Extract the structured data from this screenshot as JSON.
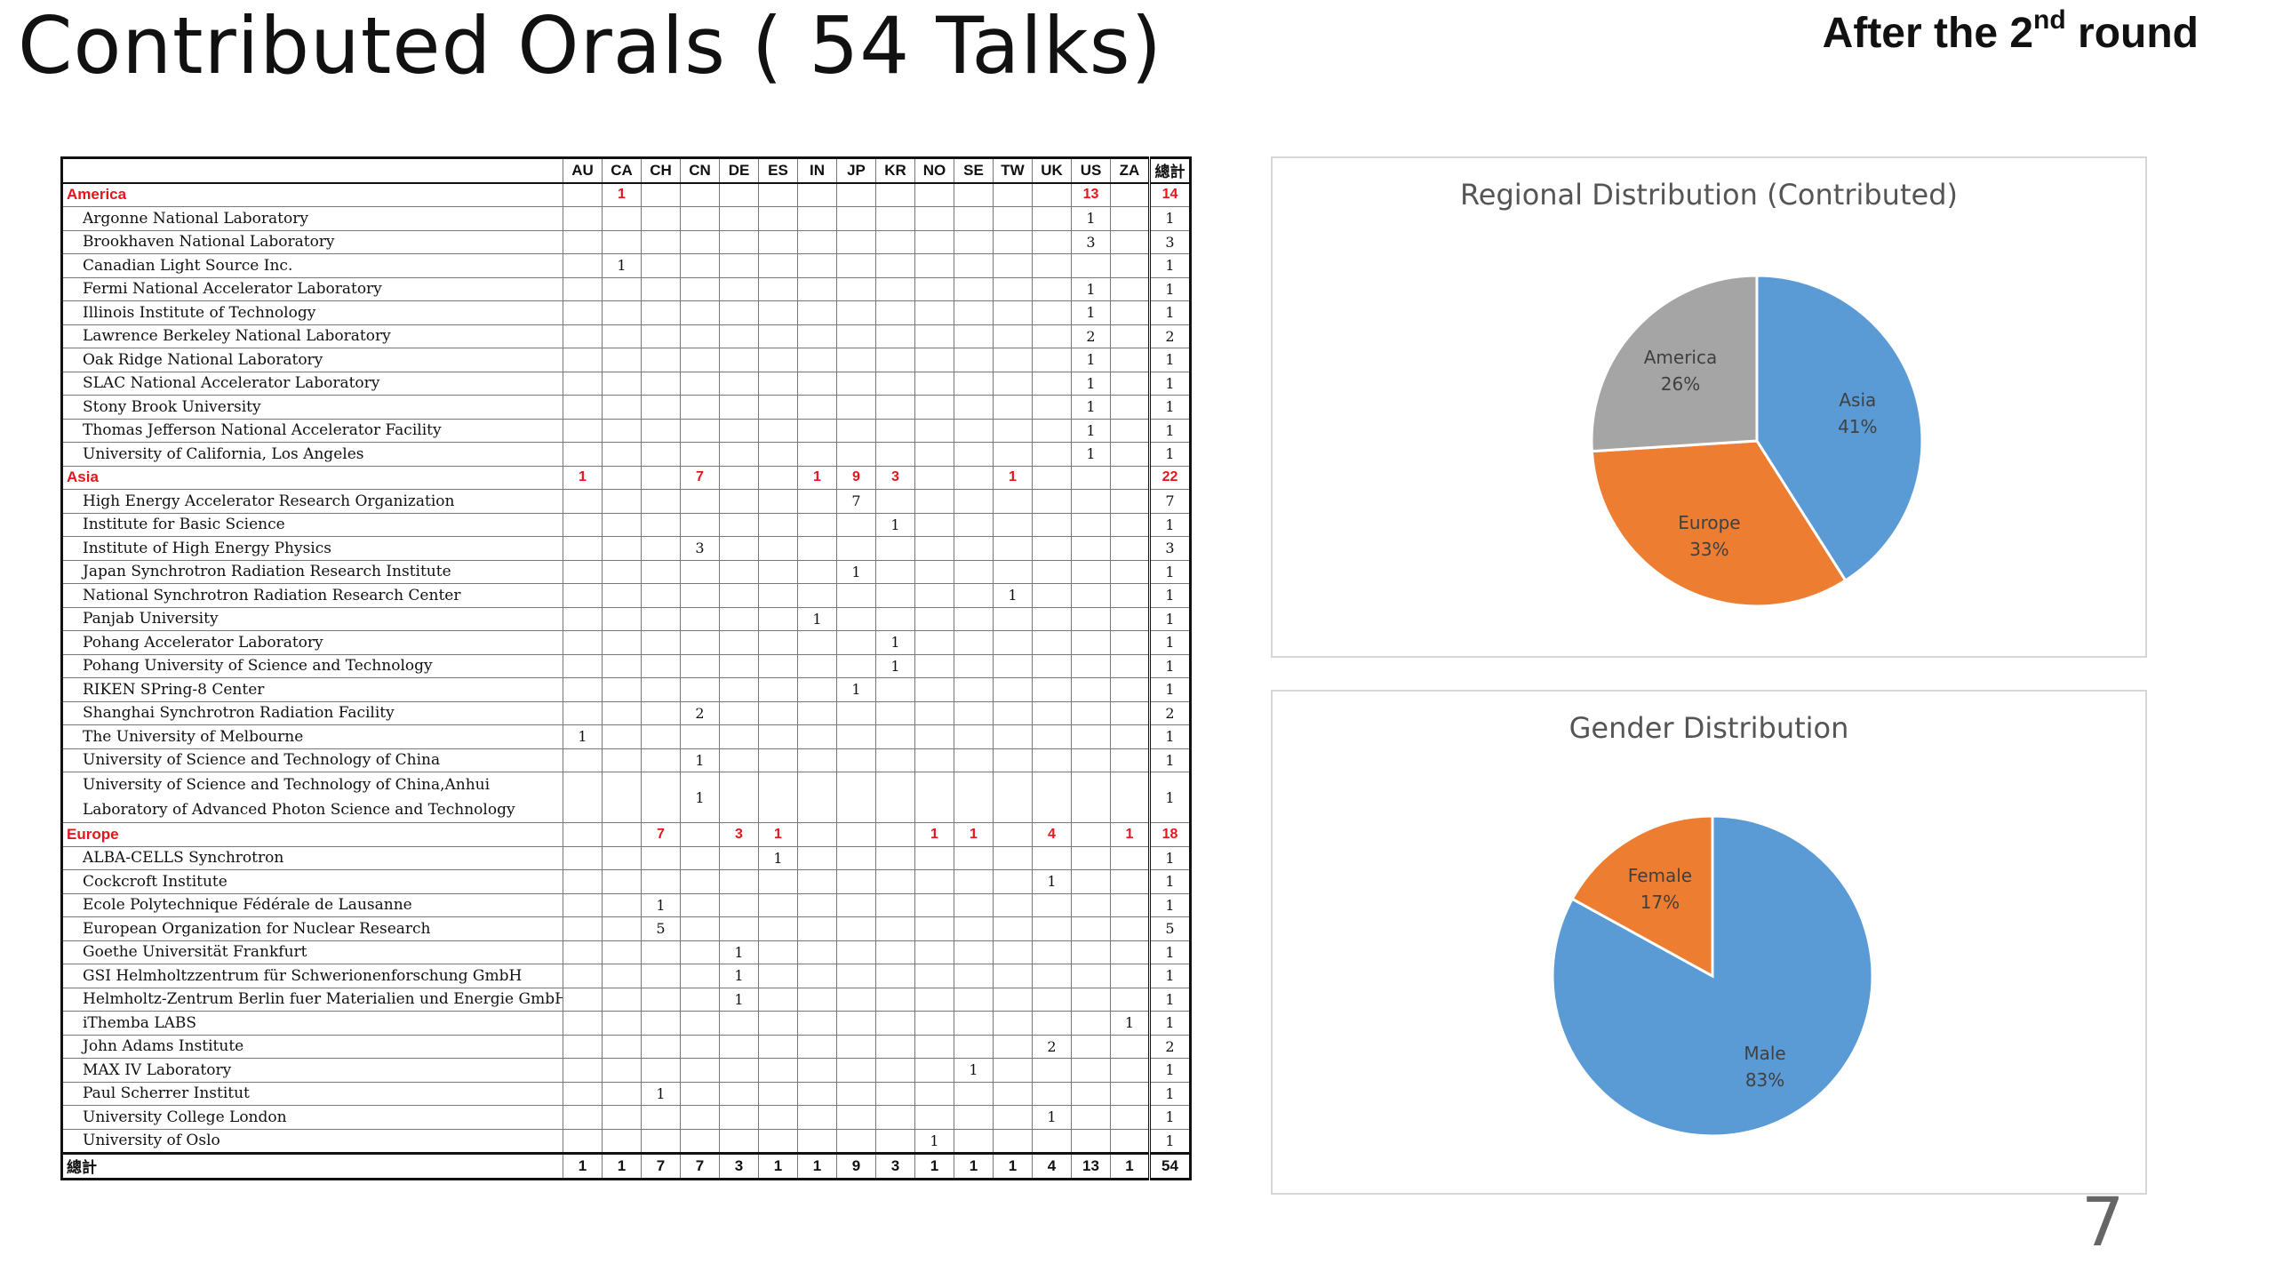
{
  "slide": {
    "title": "Contributed Orals ( 54 Talks)",
    "round_prefix": "After the 2",
    "round_sup": "nd",
    "round_suffix": " round",
    "number": "7"
  },
  "table": {
    "columns": [
      "AU",
      "CA",
      "CH",
      "CN",
      "DE",
      "ES",
      "IN",
      "JP",
      "KR",
      "NO",
      "SE",
      "TW",
      "UK",
      "US",
      "ZA",
      "總計"
    ],
    "rows": [
      {
        "type": "group",
        "name": "America",
        "cells": [
          "",
          "1",
          "",
          "",
          "",
          "",
          "",
          "",
          "",
          "",
          "",
          "",
          "",
          "13",
          "",
          "14"
        ]
      },
      {
        "type": "item",
        "name": "Argonne National Laboratory",
        "cells": [
          "",
          "",
          "",
          "",
          "",
          "",
          "",
          "",
          "",
          "",
          "",
          "",
          "",
          "1",
          "",
          "1"
        ]
      },
      {
        "type": "item",
        "name": "Brookhaven National Laboratory",
        "cells": [
          "",
          "",
          "",
          "",
          "",
          "",
          "",
          "",
          "",
          "",
          "",
          "",
          "",
          "3",
          "",
          "3"
        ]
      },
      {
        "type": "item",
        "name": "Canadian Light Source Inc.",
        "cells": [
          "",
          "1",
          "",
          "",
          "",
          "",
          "",
          "",
          "",
          "",
          "",
          "",
          "",
          "",
          "",
          "1"
        ]
      },
      {
        "type": "item",
        "name": "Fermi National Accelerator Laboratory",
        "cells": [
          "",
          "",
          "",
          "",
          "",
          "",
          "",
          "",
          "",
          "",
          "",
          "",
          "",
          "1",
          "",
          "1"
        ]
      },
      {
        "type": "item",
        "name": "Illinois Institute of Technology",
        "cells": [
          "",
          "",
          "",
          "",
          "",
          "",
          "",
          "",
          "",
          "",
          "",
          "",
          "",
          "1",
          "",
          "1"
        ]
      },
      {
        "type": "item",
        "name": "Lawrence Berkeley National Laboratory",
        "cells": [
          "",
          "",
          "",
          "",
          "",
          "",
          "",
          "",
          "",
          "",
          "",
          "",
          "",
          "2",
          "",
          "2"
        ]
      },
      {
        "type": "item",
        "name": "Oak Ridge National Laboratory",
        "cells": [
          "",
          "",
          "",
          "",
          "",
          "",
          "",
          "",
          "",
          "",
          "",
          "",
          "",
          "1",
          "",
          "1"
        ]
      },
      {
        "type": "item",
        "name": "SLAC National Accelerator Laboratory",
        "cells": [
          "",
          "",
          "",
          "",
          "",
          "",
          "",
          "",
          "",
          "",
          "",
          "",
          "",
          "1",
          "",
          "1"
        ]
      },
      {
        "type": "item",
        "name": "Stony Brook University",
        "cells": [
          "",
          "",
          "",
          "",
          "",
          "",
          "",
          "",
          "",
          "",
          "",
          "",
          "",
          "1",
          "",
          "1"
        ]
      },
      {
        "type": "item",
        "name": "Thomas Jefferson National Accelerator Facility",
        "cells": [
          "",
          "",
          "",
          "",
          "",
          "",
          "",
          "",
          "",
          "",
          "",
          "",
          "",
          "1",
          "",
          "1"
        ]
      },
      {
        "type": "item",
        "name": "University of California, Los Angeles",
        "cells": [
          "",
          "",
          "",
          "",
          "",
          "",
          "",
          "",
          "",
          "",
          "",
          "",
          "",
          "1",
          "",
          "1"
        ]
      },
      {
        "type": "group",
        "name": "Asia",
        "cells": [
          "1",
          "",
          "",
          "7",
          "",
          "",
          "1",
          "9",
          "3",
          "",
          "",
          "1",
          "",
          "",
          "",
          "22"
        ]
      },
      {
        "type": "item",
        "name": "High Energy Accelerator Research Organization",
        "cells": [
          "",
          "",
          "",
          "",
          "",
          "",
          "",
          "7",
          "",
          "",
          "",
          "",
          "",
          "",
          "",
          "7"
        ]
      },
      {
        "type": "item",
        "name": "Institute for Basic Science",
        "cells": [
          "",
          "",
          "",
          "",
          "",
          "",
          "",
          "",
          "1",
          "",
          "",
          "",
          "",
          "",
          "",
          "1"
        ]
      },
      {
        "type": "item",
        "name": "Institute of High Energy Physics",
        "cells": [
          "",
          "",
          "",
          "3",
          "",
          "",
          "",
          "",
          "",
          "",
          "",
          "",
          "",
          "",
          "",
          "3"
        ]
      },
      {
        "type": "item",
        "name": "Japan Synchrotron Radiation Research Institute",
        "cells": [
          "",
          "",
          "",
          "",
          "",
          "",
          "",
          "1",
          "",
          "",
          "",
          "",
          "",
          "",
          "",
          "1"
        ]
      },
      {
        "type": "item",
        "name": "National Synchrotron Radiation Research Center",
        "cells": [
          "",
          "",
          "",
          "",
          "",
          "",
          "",
          "",
          "",
          "",
          "",
          "1",
          "",
          "",
          "",
          "1"
        ]
      },
      {
        "type": "item",
        "name": "Panjab University",
        "cells": [
          "",
          "",
          "",
          "",
          "",
          "",
          "1",
          "",
          "",
          "",
          "",
          "",
          "",
          "",
          "",
          "1"
        ]
      },
      {
        "type": "item",
        "name": "Pohang Accelerator Laboratory",
        "cells": [
          "",
          "",
          "",
          "",
          "",
          "",
          "",
          "",
          "1",
          "",
          "",
          "",
          "",
          "",
          "",
          "1"
        ]
      },
      {
        "type": "item",
        "name": "Pohang University of Science and Technology",
        "cells": [
          "",
          "",
          "",
          "",
          "",
          "",
          "",
          "",
          "1",
          "",
          "",
          "",
          "",
          "",
          "",
          "1"
        ]
      },
      {
        "type": "item",
        "name": "RIKEN SPring-8 Center",
        "cells": [
          "",
          "",
          "",
          "",
          "",
          "",
          "",
          "1",
          "",
          "",
          "",
          "",
          "",
          "",
          "",
          "1"
        ]
      },
      {
        "type": "item",
        "name": "Shanghai Synchrotron Radiation Facility",
        "cells": [
          "",
          "",
          "",
          "2",
          "",
          "",
          "",
          "",
          "",
          "",
          "",
          "",
          "",
          "",
          "",
          "2"
        ]
      },
      {
        "type": "item",
        "name": "The University of Melbourne",
        "cells": [
          "1",
          "",
          "",
          "",
          "",
          "",
          "",
          "",
          "",
          "",
          "",
          "",
          "",
          "",
          "",
          "1"
        ]
      },
      {
        "type": "item",
        "name": "University of Science and Technology of China",
        "cells": [
          "",
          "",
          "",
          "1",
          "",
          "",
          "",
          "",
          "",
          "",
          "",
          "",
          "",
          "",
          "",
          "1"
        ]
      },
      {
        "type": "tall",
        "name": "University of Science and Technology of China,Anhui Laboratory of Advanced Photon Science and Technology",
        "cells": [
          "",
          "",
          "",
          "1",
          "",
          "",
          "",
          "",
          "",
          "",
          "",
          "",
          "",
          "",
          "",
          "1"
        ]
      },
      {
        "type": "group",
        "name": "Europe",
        "cells": [
          "",
          "",
          "7",
          "",
          "3",
          "1",
          "",
          "",
          "",
          "1",
          "1",
          "",
          "4",
          "",
          "1",
          "18"
        ]
      },
      {
        "type": "item",
        "name": "ALBA-CELLS Synchrotron",
        "cells": [
          "",
          "",
          "",
          "",
          "",
          "1",
          "",
          "",
          "",
          "",
          "",
          "",
          "",
          "",
          "",
          "1"
        ]
      },
      {
        "type": "item",
        "name": "Cockcroft Institute",
        "cells": [
          "",
          "",
          "",
          "",
          "",
          "",
          "",
          "",
          "",
          "",
          "",
          "",
          "1",
          "",
          "",
          "1"
        ]
      },
      {
        "type": "item",
        "name": "Ecole Polytechnique Fédérale de Lausanne",
        "cells": [
          "",
          "",
          "1",
          "",
          "",
          "",
          "",
          "",
          "",
          "",
          "",
          "",
          "",
          "",
          "",
          "1"
        ]
      },
      {
        "type": "item",
        "name": "European Organization for Nuclear Research",
        "cells": [
          "",
          "",
          "5",
          "",
          "",
          "",
          "",
          "",
          "",
          "",
          "",
          "",
          "",
          "",
          "",
          "5"
        ]
      },
      {
        "type": "item",
        "name": "Goethe Universität Frankfurt",
        "cells": [
          "",
          "",
          "",
          "",
          "1",
          "",
          "",
          "",
          "",
          "",
          "",
          "",
          "",
          "",
          "",
          "1"
        ]
      },
      {
        "type": "item",
        "name": "GSI Helmholtzzentrum für Schwerionenforschung GmbH",
        "cells": [
          "",
          "",
          "",
          "",
          "1",
          "",
          "",
          "",
          "",
          "",
          "",
          "",
          "",
          "",
          "",
          "1"
        ]
      },
      {
        "type": "item",
        "name": "Helmholtz-Zentrum Berlin fuer Materialien und Energie GmbH",
        "cells": [
          "",
          "",
          "",
          "",
          "1",
          "",
          "",
          "",
          "",
          "",
          "",
          "",
          "",
          "",
          "",
          "1"
        ]
      },
      {
        "type": "item",
        "name": "iThemba LABS",
        "cells": [
          "",
          "",
          "",
          "",
          "",
          "",
          "",
          "",
          "",
          "",
          "",
          "",
          "",
          "",
          "1",
          "1"
        ]
      },
      {
        "type": "item",
        "name": "John Adams Institute",
        "cells": [
          "",
          "",
          "",
          "",
          "",
          "",
          "",
          "",
          "",
          "",
          "",
          "",
          "2",
          "",
          "",
          "2"
        ]
      },
      {
        "type": "item",
        "name": "MAX IV Laboratory",
        "cells": [
          "",
          "",
          "",
          "",
          "",
          "",
          "",
          "",
          "",
          "",
          "1",
          "",
          "",
          "",
          "",
          "1"
        ]
      },
      {
        "type": "item",
        "name": "Paul Scherrer Institut",
        "cells": [
          "",
          "",
          "1",
          "",
          "",
          "",
          "",
          "",
          "",
          "",
          "",
          "",
          "",
          "",
          "",
          "1"
        ]
      },
      {
        "type": "item",
        "name": "University College London",
        "cells": [
          "",
          "",
          "",
          "",
          "",
          "",
          "",
          "",
          "",
          "",
          "",
          "",
          "1",
          "",
          "",
          "1"
        ]
      },
      {
        "type": "item",
        "name": "University of Oslo",
        "cells": [
          "",
          "",
          "",
          "",
          "",
          "",
          "",
          "",
          "",
          "1",
          "",
          "",
          "",
          "",
          "",
          "1"
        ]
      },
      {
        "type": "total",
        "name": "總計",
        "cells": [
          "1",
          "1",
          "7",
          "7",
          "3",
          "1",
          "1",
          "9",
          "3",
          "1",
          "1",
          "1",
          "4",
          "13",
          "1",
          "54"
        ]
      }
    ]
  },
  "chart_data": [
    {
      "type": "pie",
      "title": "Regional Distribution (Contributed)",
      "slices": [
        {
          "label": "Asia",
          "percent_label": "41%",
          "value": 41,
          "color": "#5b9bd5"
        },
        {
          "label": "Europe",
          "percent_label": "33%",
          "value": 33,
          "color": "#ed7d31"
        },
        {
          "label": "America",
          "percent_label": "26%",
          "value": 26,
          "color": "#a5a5a5"
        }
      ]
    },
    {
      "type": "pie",
      "title": "Gender Distribution",
      "slices": [
        {
          "label": "Male",
          "percent_label": "83%",
          "value": 83,
          "color": "#5b9bd5"
        },
        {
          "label": "Female",
          "percent_label": "17%",
          "value": 17,
          "color": "#ed7d31"
        }
      ]
    }
  ]
}
